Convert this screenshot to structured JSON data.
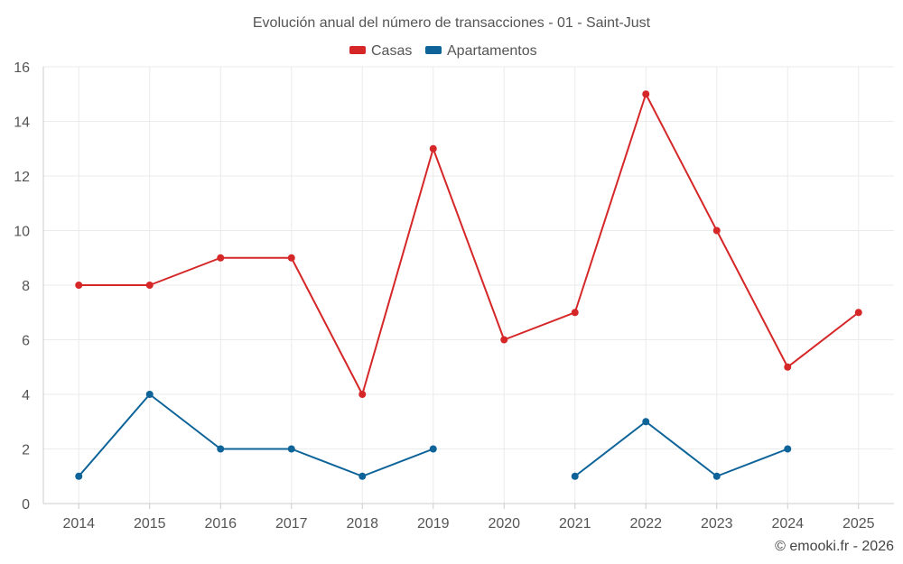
{
  "chart_data": {
    "type": "line",
    "title": "Evolución anual del número de transacciones - 01 - Saint-Just",
    "xlabel": "",
    "ylabel": "",
    "categories": [
      "2014",
      "2015",
      "2016",
      "2017",
      "2018",
      "2019",
      "2020",
      "2021",
      "2022",
      "2023",
      "2024",
      "2025"
    ],
    "ylim": [
      0,
      16
    ],
    "yticks": [
      0,
      2,
      4,
      6,
      8,
      10,
      12,
      14,
      16
    ],
    "grid": true,
    "legend_position": "top-center",
    "series": [
      {
        "name": "Casas",
        "color": "#d62728",
        "values": [
          8,
          8,
          9,
          9,
          4,
          13,
          6,
          7,
          15,
          10,
          5,
          7
        ]
      },
      {
        "name": "Apartamentos",
        "color": "#0e6499",
        "values": [
          1,
          4,
          2,
          2,
          1,
          2,
          null,
          1,
          3,
          1,
          2,
          null
        ]
      }
    ]
  },
  "credit": "© emooki.fr - 2026"
}
